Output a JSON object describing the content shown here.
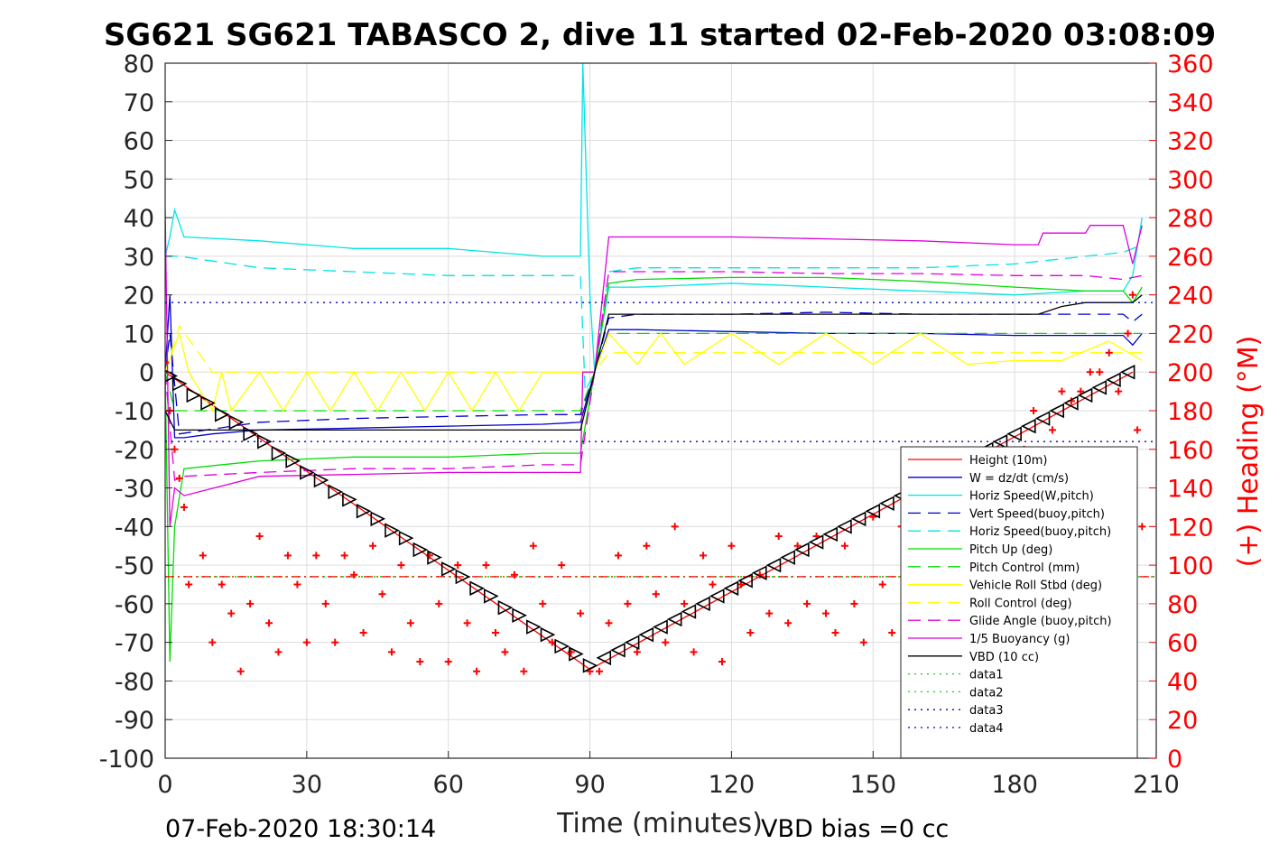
{
  "chart_data": {
    "type": "line",
    "title": "SG621 SG621 TABASCO 2, dive 11 started 02-Feb-2020 03:08:09",
    "xlabel": "Time (minutes)",
    "ylabel": "",
    "y2label": "(+) Heading (°M)",
    "xlim": [
      0,
      210
    ],
    "ylim": [
      -100,
      80
    ],
    "y2lim": [
      0,
      360
    ],
    "xticks": [
      "0",
      "30",
      "60",
      "90",
      "120",
      "150",
      "180",
      "210"
    ],
    "yticks": [
      "80",
      "70",
      "60",
      "50",
      "40",
      "30",
      "20",
      "10",
      "0",
      "-10",
      "-20",
      "-30",
      "-40",
      "-50",
      "-60",
      "-70",
      "-80",
      "-90",
      "-100"
    ],
    "y2ticks": [
      "360",
      "340",
      "320",
      "300",
      "280",
      "260",
      "240",
      "220",
      "200",
      "180",
      "160",
      "140",
      "120",
      "100",
      "80",
      "60",
      "40",
      "20",
      "0"
    ],
    "grid": true,
    "legend_position": "bottom-right",
    "footer_left": "07-Feb-2020 18:30:14",
    "footer_right": "VBD bias =0 cc",
    "series": [
      {
        "name": "Height (10m)",
        "color": "#ff0000",
        "style": "solid",
        "x": [
          0,
          90,
          205
        ],
        "y": [
          0,
          -77,
          0
        ]
      },
      {
        "name": "W = dz/dt (cm/s)",
        "color": "#0000cc",
        "style": "solid",
        "x": [
          0,
          1,
          2,
          4,
          10,
          20,
          40,
          60,
          80,
          88,
          91,
          94,
          100,
          120,
          140,
          160,
          180,
          195,
          203,
          205,
          207
        ],
        "y": [
          0,
          20,
          -17,
          -17,
          -16,
          -15,
          -14.5,
          -14,
          -13.5,
          -13,
          0,
          11,
          11,
          10.5,
          10,
          10,
          9.5,
          9.5,
          9.5,
          7,
          10
        ]
      },
      {
        "name": "Horiz Speed(W,pitch)",
        "color": "#00e5e5",
        "style": "solid",
        "x": [
          0,
          1,
          2,
          4,
          20,
          40,
          60,
          80,
          88,
          88.5,
          89,
          90,
          91,
          94,
          100,
          120,
          140,
          160,
          180,
          195,
          203,
          205,
          207
        ],
        "y": [
          30,
          35,
          42,
          35,
          34,
          32,
          32,
          30,
          30,
          80,
          60,
          20,
          0,
          22,
          22,
          23,
          22,
          21,
          20,
          21,
          21,
          25,
          40
        ]
      },
      {
        "name": "Vert Speed(buoy,pitch)",
        "color": "#0000cc",
        "style": "dashed",
        "x": [
          0,
          1,
          3,
          20,
          40,
          60,
          80,
          88,
          91,
          94,
          100,
          120,
          140,
          160,
          180,
          195,
          203,
          205,
          207
        ],
        "y": [
          0,
          10,
          -16,
          -13,
          -12,
          -11.5,
          -11,
          -11,
          0,
          14,
          15,
          15,
          15.5,
          15,
          15,
          15,
          15,
          13,
          15
        ]
      },
      {
        "name": "Horiz Speed(buoy,pitch)",
        "color": "#00e5e5",
        "style": "dashed",
        "x": [
          0,
          3,
          20,
          40,
          60,
          80,
          88,
          89,
          91,
          94,
          100,
          120,
          140,
          160,
          180,
          195,
          203,
          207
        ],
        "y": [
          30,
          30,
          27,
          26,
          25,
          25,
          25,
          -5,
          0,
          26,
          27,
          27,
          27,
          27,
          28,
          30,
          31,
          33
        ]
      },
      {
        "name": "Pitch Up (deg)",
        "color": "#00dd00",
        "style": "solid",
        "x": [
          0,
          1,
          2,
          4,
          20,
          40,
          60,
          80,
          88,
          91,
          94,
          100,
          120,
          140,
          160,
          180,
          195,
          203,
          205,
          207
        ],
        "y": [
          0,
          -75,
          -40,
          -25,
          -23,
          -22,
          -22,
          -21,
          -21,
          0,
          23,
          24,
          24.5,
          24.5,
          23.5,
          22,
          21,
          21,
          18,
          22
        ]
      },
      {
        "name": "Pitch Control (mm)",
        "color": "#00dd00",
        "style": "dashed",
        "x": [
          0,
          2,
          4,
          20,
          40,
          60,
          88,
          91,
          94,
          120,
          160,
          200,
          207
        ],
        "y": [
          0,
          -10,
          -10,
          -10,
          -10,
          -10,
          -10,
          0,
          10,
          10,
          10,
          10,
          10
        ]
      },
      {
        "name": "Vehicle Roll Stbd (deg)",
        "color": "#ffff00",
        "style": "solid",
        "x": [
          0,
          3,
          5,
          10,
          12,
          14,
          20,
          25,
          30,
          35,
          40,
          45,
          50,
          55,
          60,
          65,
          70,
          75,
          80,
          88,
          91,
          94,
          100,
          105,
          110,
          120,
          130,
          140,
          150,
          160,
          170,
          180,
          190,
          200,
          207
        ],
        "y": [
          0,
          10,
          0,
          -10,
          0,
          -10,
          0,
          -10,
          0,
          -10,
          0,
          -10,
          0,
          -10,
          0,
          -10,
          0,
          -10,
          0,
          0,
          0,
          10,
          2,
          10,
          2,
          10,
          2,
          10,
          2,
          10,
          2,
          3,
          3,
          8,
          3
        ]
      },
      {
        "name": "Roll Control (deg)",
        "color": "#ffff00",
        "style": "dashed",
        "x": [
          0,
          3,
          10,
          30,
          60,
          88,
          91,
          94,
          120,
          160,
          190,
          205,
          207
        ],
        "y": [
          0,
          12,
          0,
          0,
          0,
          0,
          0,
          5,
          5,
          5,
          5,
          5,
          5
        ]
      },
      {
        "name": "Glide Angle (buoy,pitch)",
        "color": "#dd00dd",
        "style": "dashed",
        "x": [
          0,
          2,
          4,
          20,
          40,
          60,
          80,
          88,
          91,
          94,
          100,
          120,
          140,
          160,
          180,
          195,
          203,
          207
        ],
        "y": [
          0,
          -28,
          -27,
          -26,
          -25,
          -25,
          -24,
          -24,
          0,
          26,
          26,
          26,
          25.5,
          25.5,
          25,
          25,
          24,
          25
        ]
      },
      {
        "name": "1/5 Buoyancy (g)",
        "color": "#dd00dd",
        "style": "solid",
        "x": [
          0,
          1,
          2,
          4,
          20,
          40,
          60,
          80,
          88,
          88.5,
          91,
          94,
          100,
          120,
          140,
          160,
          180,
          185,
          186,
          195,
          196,
          203,
          205,
          207
        ],
        "y": [
          42,
          -40,
          -30,
          -32,
          -27,
          -26.5,
          -26,
          -26,
          -26,
          0,
          0,
          35,
          35,
          35,
          34.5,
          34,
          33,
          33,
          36,
          36,
          38,
          38,
          28,
          38
        ]
      },
      {
        "name": "VBD (10 cc)",
        "color": "#000000",
        "style": "solid",
        "x": [
          0,
          2,
          4,
          20,
          60,
          88,
          91,
          94,
          120,
          160,
          185,
          190,
          195,
          205,
          207
        ],
        "y": [
          -10,
          -15,
          -15,
          -15,
          -15,
          -15,
          0,
          15,
          15,
          15,
          15,
          17,
          18,
          18,
          20
        ]
      },
      {
        "name": "data1",
        "color": "#00dd00",
        "style": "dotted",
        "x": [
          0,
          210
        ],
        "y": [
          -53,
          -53
        ]
      },
      {
        "name": "data2",
        "color": "#00dd00",
        "style": "dotted",
        "x": [
          0,
          210
        ],
        "y": [
          -53,
          -53
        ]
      },
      {
        "name": "data3",
        "color": "#0000aa",
        "style": "dotted",
        "x": [
          0,
          210
        ],
        "y": [
          18,
          18
        ]
      },
      {
        "name": "data4",
        "color": "#0000aa",
        "style": "dotted",
        "x": [
          0,
          210
        ],
        "y": [
          -18,
          -18
        ]
      },
      {
        "name": "",
        "color": "#ff0000",
        "style": "line-dashdot",
        "x": [
          0,
          210
        ],
        "y": [
          -53,
          -53
        ]
      }
    ],
    "heading": {
      "color": "#ff0000",
      "marker": "+",
      "axis": "right",
      "x": [
        0,
        1,
        2,
        3,
        4,
        5,
        8,
        10,
        12,
        14,
        16,
        18,
        20,
        22,
        24,
        26,
        28,
        30,
        32,
        34,
        36,
        38,
        40,
        42,
        44,
        46,
        48,
        50,
        52,
        54,
        56,
        58,
        60,
        62,
        64,
        66,
        68,
        70,
        72,
        74,
        76,
        78,
        80,
        82,
        84,
        86,
        88,
        90,
        92,
        94,
        96,
        98,
        100,
        102,
        104,
        106,
        108,
        110,
        112,
        114,
        116,
        118,
        120,
        122,
        124,
        126,
        128,
        130,
        132,
        134,
        136,
        138,
        140,
        142,
        144,
        146,
        148,
        150,
        152,
        154,
        156,
        158,
        160,
        162,
        164,
        166,
        168,
        170,
        172,
        174,
        176,
        178,
        180,
        182,
        184,
        186,
        188,
        190,
        192,
        194,
        196,
        198,
        200,
        202,
        204,
        205,
        206,
        207
      ],
      "y": [
        205,
        180,
        160,
        145,
        130,
        90,
        105,
        60,
        90,
        75,
        45,
        80,
        115,
        70,
        55,
        105,
        90,
        60,
        105,
        80,
        60,
        105,
        95,
        65,
        110,
        85,
        55,
        100,
        70,
        50,
        105,
        80,
        50,
        100,
        70,
        45,
        100,
        65,
        55,
        95,
        45,
        110,
        80,
        60,
        100,
        55,
        75,
        45,
        45,
        70,
        105,
        80,
        55,
        110,
        85,
        60,
        120,
        80,
        55,
        105,
        90,
        50,
        110,
        90,
        65,
        95,
        75,
        115,
        70,
        110,
        80,
        115,
        75,
        65,
        110,
        80,
        60,
        125,
        90,
        65,
        120,
        80,
        110,
        70,
        115,
        85,
        70,
        110,
        80,
        65,
        100,
        90,
        120,
        160,
        180,
        150,
        170,
        190,
        185,
        190,
        200,
        200,
        210,
        190,
        220,
        240,
        170,
        120
      ]
    },
    "diamonds": {
      "color": "#000000",
      "marker": "triangle",
      "x": [
        1,
        3,
        6,
        9,
        12,
        15,
        18,
        21,
        24,
        27,
        30,
        33,
        36,
        39,
        42,
        45,
        48,
        51,
        54,
        57,
        60,
        63,
        66,
        69,
        72,
        75,
        78,
        81,
        84,
        87,
        90,
        93,
        96,
        99,
        102,
        105,
        108,
        111,
        114,
        117,
        120,
        123,
        126,
        129,
        132,
        135,
        138,
        141,
        144,
        147,
        150,
        153,
        156,
        159,
        162,
        165,
        168,
        171,
        174,
        177,
        180,
        183,
        186,
        189,
        192,
        195,
        198,
        201,
        204
      ],
      "y": [
        -1,
        -3,
        -6,
        -8,
        -11,
        -13,
        -16,
        -18,
        -21,
        -23,
        -26,
        -28,
        -31,
        -33,
        -36,
        -38,
        -41,
        -43,
        -46,
        -48,
        -51,
        -53,
        -56,
        -58,
        -61,
        -63,
        -66,
        -68,
        -71,
        -73,
        -76,
        -74,
        -72,
        -70,
        -68,
        -66,
        -64,
        -62,
        -60,
        -58,
        -56,
        -54,
        -52,
        -50,
        -48,
        -46,
        -44,
        -42,
        -40,
        -38,
        -36,
        -34,
        -32,
        -30,
        -28,
        -26,
        -24,
        -22,
        -20,
        -18,
        -16,
        -14,
        -12,
        -10,
        -8,
        -6,
        -4,
        -2,
        0
      ]
    }
  }
}
